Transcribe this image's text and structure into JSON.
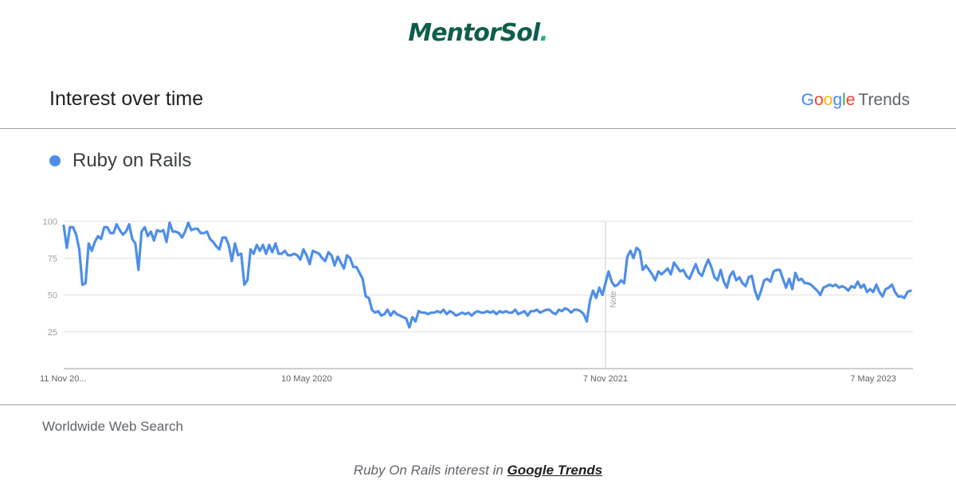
{
  "logo": {
    "text": "MentorSol",
    "dot": "."
  },
  "header": {
    "title": "Interest over time"
  },
  "brand": {
    "google": [
      "G",
      "o",
      "o",
      "g",
      "l",
      "e"
    ],
    "trends": "Trends"
  },
  "footer": {
    "left": "Worldwide Web Search",
    "caption_prefix": "Ruby On Rails interest in ",
    "caption_link": "Google Trends"
  },
  "annotation": "Note",
  "chart_data": {
    "type": "line",
    "series": [
      {
        "name": "Ruby on Rails",
        "color": "#4e8ee8",
        "values": [
          97,
          82,
          96,
          96,
          91,
          81,
          57,
          58,
          85,
          80,
          86,
          90,
          88,
          96,
          96,
          92,
          92,
          98,
          94,
          91,
          93,
          98,
          88,
          85,
          67,
          93,
          96,
          90,
          93,
          87,
          94,
          93,
          94,
          86,
          99,
          93,
          93,
          92,
          89,
          93,
          99,
          94,
          95,
          95,
          92,
          92,
          93,
          88,
          86,
          83,
          81,
          89,
          89,
          84,
          73,
          85,
          77,
          78,
          57,
          60,
          81,
          78,
          84,
          80,
          84,
          78,
          84,
          79,
          85,
          78,
          78,
          80,
          77,
          77,
          78,
          77,
          74,
          81,
          77,
          71,
          80,
          79,
          78,
          75,
          73,
          79,
          77,
          70,
          76,
          72,
          68,
          77,
          75,
          69,
          69,
          65,
          61,
          49,
          48,
          40,
          38,
          39,
          36,
          37,
          40,
          36,
          39,
          37,
          36,
          35,
          34,
          28,
          35,
          32,
          39,
          38,
          38,
          37,
          38,
          38,
          39,
          38,
          40,
          37,
          39,
          38,
          36,
          37,
          38,
          37,
          38,
          36,
          38,
          39,
          38,
          38,
          39,
          38,
          39,
          37,
          39,
          38,
          39,
          38,
          38,
          40,
          37,
          38,
          39,
          36,
          39,
          39,
          40,
          38,
          39,
          40,
          40,
          38,
          37,
          40,
          39,
          41,
          40,
          38,
          40,
          40,
          39,
          37,
          32,
          46,
          53,
          48,
          55,
          50,
          58,
          66,
          59,
          56,
          57,
          60,
          58,
          76,
          80,
          75,
          82,
          80,
          67,
          70,
          67,
          64,
          60,
          66,
          64,
          66,
          68,
          64,
          72,
          69,
          66,
          67,
          63,
          61,
          66,
          71,
          65,
          63,
          69,
          74,
          69,
          62,
          60,
          67,
          59,
          55,
          63,
          66,
          60,
          62,
          58,
          56,
          62,
          63,
          53,
          47,
          53,
          60,
          61,
          59,
          66,
          67,
          67,
          61,
          55,
          61,
          54,
          65,
          60,
          61,
          58,
          58,
          57,
          55,
          53,
          50,
          55,
          56,
          57,
          56,
          57,
          55,
          56,
          55,
          53,
          56,
          55,
          59,
          55,
          57,
          52,
          54,
          52,
          57,
          52,
          49,
          54,
          55,
          57,
          52,
          49,
          49,
          48,
          52,
          53
        ]
      }
    ],
    "x_ticks": [
      "11 Nov 20...",
      "10 May 2020",
      "7 Nov 2021",
      "7 May 2023"
    ],
    "x_tick_index": [
      0,
      78,
      174,
      260
    ],
    "yticks": [
      25,
      50,
      75,
      100
    ],
    "ylim": [
      0,
      100
    ],
    "note_index": 174,
    "grid": true
  }
}
